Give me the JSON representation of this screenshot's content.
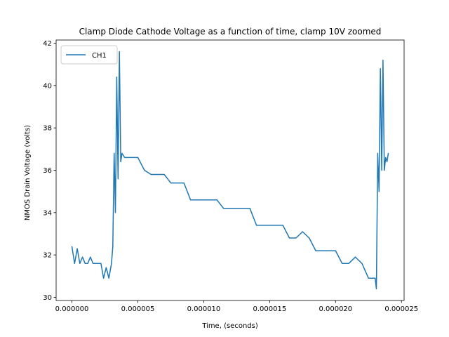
{
  "chart_data": {
    "type": "line",
    "title": "Clamp Diode Cathode Voltage as a function of time, clamp 10V zoomed",
    "xlabel": "Time, (seconds)",
    "ylabel": "NMOS Drain Voltage (volts)",
    "xlim": [
      -1.2e-06,
      2.52e-05
    ],
    "ylim": [
      29.85,
      42.15
    ],
    "x_ticks": [
      0,
      5e-06,
      1e-05,
      1.5e-05,
      2e-05,
      2.5e-05
    ],
    "x_tick_labels": [
      "0.000000",
      "0.000005",
      "0.000010",
      "0.000015",
      "0.000020",
      "0.000025"
    ],
    "y_ticks": [
      30,
      32,
      34,
      36,
      38,
      40,
      42
    ],
    "y_tick_labels": [
      "30",
      "32",
      "34",
      "36",
      "38",
      "40",
      "42"
    ],
    "grid": false,
    "legend_position": "top-left",
    "series": [
      {
        "name": "CH1",
        "color": "#1f77b4",
        "x": [
          0,
          2e-07,
          4e-07,
          6e-07,
          8e-07,
          1e-06,
          1.2e-06,
          1.4e-06,
          1.6e-06,
          1.8e-06,
          2e-06,
          2.2e-06,
          2.4e-06,
          2.6e-06,
          2.8e-06,
          3e-06,
          3.1e-06,
          3.2e-06,
          3.3e-06,
          3.4e-06,
          3.5e-06,
          3.6e-06,
          3.7e-06,
          3.8e-06,
          4e-06,
          4.5e-06,
          5e-06,
          5.5e-06,
          6e-06,
          6.5e-06,
          7e-06,
          7.5e-06,
          8e-06,
          8.5e-06,
          9e-06,
          9.5e-06,
          1e-05,
          1.05e-05,
          1.1e-05,
          1.15e-05,
          1.2e-05,
          1.25e-05,
          1.3e-05,
          1.35e-05,
          1.4e-05,
          1.45e-05,
          1.5e-05,
          1.55e-05,
          1.6e-05,
          1.65e-05,
          1.7e-05,
          1.75e-05,
          1.8e-05,
          1.85e-05,
          1.9e-05,
          1.95e-05,
          2e-05,
          2.05e-05,
          2.1e-05,
          2.15e-05,
          2.2e-05,
          2.25e-05,
          2.3e-05,
          2.31e-05,
          2.32e-05,
          2.33e-05,
          2.34e-05,
          2.35e-05,
          2.36e-05,
          2.37e-05,
          2.38e-05,
          2.39e-05,
          2.4e-05
        ],
        "y": [
          32.4,
          31.6,
          32.3,
          31.6,
          31.9,
          31.6,
          31.6,
          31.9,
          31.6,
          31.6,
          31.6,
          31.6,
          30.9,
          31.4,
          30.9,
          31.6,
          32.4,
          36.8,
          34.0,
          40.4,
          35.6,
          41.6,
          36.4,
          36.8,
          36.6,
          36.6,
          36.6,
          36.0,
          35.8,
          35.8,
          35.8,
          35.4,
          35.4,
          35.4,
          34.6,
          34.6,
          34.6,
          34.6,
          34.6,
          34.2,
          34.2,
          34.2,
          34.2,
          34.2,
          33.4,
          33.4,
          33.4,
          33.4,
          33.4,
          32.8,
          32.8,
          33.1,
          32.8,
          32.2,
          32.2,
          32.2,
          32.2,
          31.6,
          31.6,
          31.9,
          31.6,
          30.9,
          30.9,
          30.4,
          36.8,
          35.0,
          40.8,
          36.0,
          41.2,
          36.0,
          36.6,
          36.4,
          36.8
        ]
      }
    ]
  }
}
